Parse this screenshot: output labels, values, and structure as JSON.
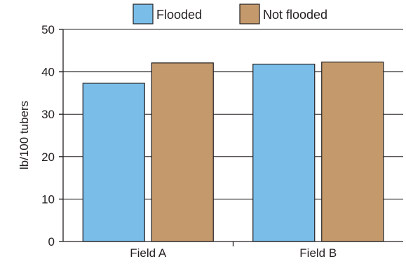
{
  "chart_data": {
    "type": "bar",
    "title": "",
    "xlabel": "",
    "ylabel": "lb/100 tubers",
    "categories": [
      "Field A",
      "Field B"
    ],
    "series": [
      {
        "name": "Flooded",
        "values": [
          37.3,
          41.8
        ],
        "color": "#79bde8"
      },
      {
        "name": "Not flooded",
        "values": [
          42.1,
          42.3
        ],
        "color": "#c49a6c"
      }
    ],
    "ylim": [
      0,
      50
    ],
    "yticks": [
      "0",
      "10",
      "20",
      "30",
      "40",
      "50"
    ],
    "grid": "horizontal",
    "legend_position": "top"
  }
}
